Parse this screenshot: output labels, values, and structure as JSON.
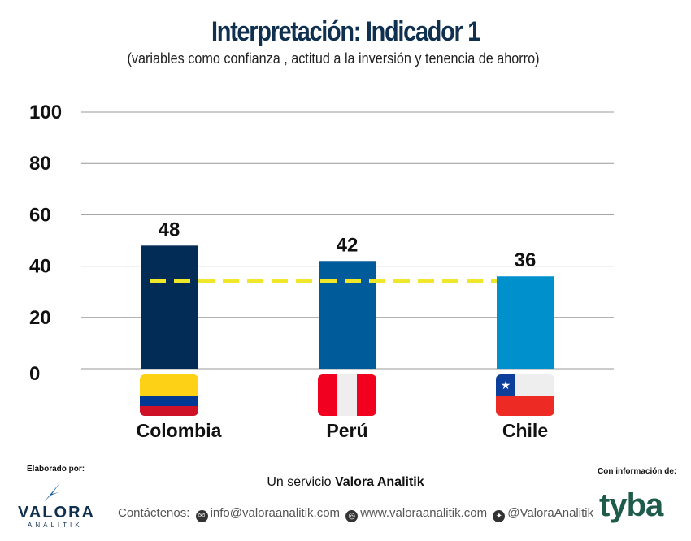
{
  "chart_data": {
    "type": "bar",
    "title": "Interpretación: Indicador 1",
    "subtitle": "(variables como confianza , actitud a la inversión y tenencia de ahorro)",
    "categories": [
      "Colombia",
      "Perú",
      "Chile"
    ],
    "values": [
      48,
      42,
      36
    ],
    "data_labels": [
      "48",
      "42",
      "36"
    ],
    "bar_colors": [
      "#022c55",
      "#005b9a",
      "#0090cc"
    ],
    "reference_line": {
      "value": 34,
      "style": "dashed",
      "color": "#f0e62a"
    },
    "yticks": [
      "0",
      "20",
      "40",
      "60",
      "80",
      "100"
    ],
    "ylim": [
      0,
      100
    ],
    "grid": true,
    "legend": "none",
    "category_icons": [
      "flag-colombia",
      "flag-peru",
      "flag-chile"
    ]
  },
  "footer": {
    "made_by": "Elaborado por:",
    "info_from": "Con información de:",
    "service_prefix": "Un servicio ",
    "service_brand": "Valora Analitik",
    "contact_label": "Contáctenos:",
    "email": "info@valoraanalitik.com",
    "website": "www.valoraanalitik.com",
    "twitter": "@ValoraAnalitik",
    "logo_left": "VALORA",
    "logo_left_sub": "ANALITIK",
    "logo_right": "tyba"
  }
}
